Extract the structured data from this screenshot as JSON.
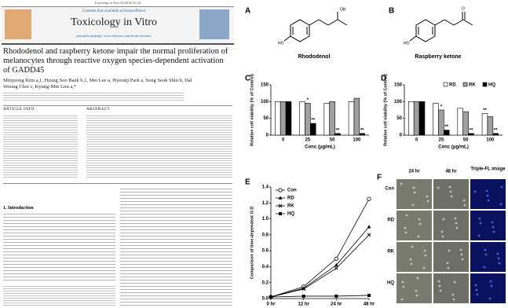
{
  "paper": {
    "citation": "Toxicology in Vitro 34 (2016) 35–44",
    "availability": "Contents lists available at ScienceDirect",
    "journal": "Toxicology in Vitro",
    "homepage": "journal homepage: www.elsevier.com/locate/toxinvit",
    "title": "Rhododenol and raspberry ketone impair the normal proliferation of melanocytes through reactive oxygen species-dependent activation of GADD45",
    "authors": "Minyeong Kim a,1, Heung Soo Baek b,1, Mei Lee a, Hyeonji Park a, Song Seok Shin b, Dal Woong Choi c, Kyung-Min Lim a,*",
    "article_info": "ARTICLE INFO",
    "abstract": "ABSTRACT",
    "introduction": "1. Introduction"
  },
  "figure": {
    "panels": [
      "A",
      "B",
      "C",
      "D",
      "E",
      "F"
    ],
    "compound_a": "Rhododenol",
    "compound_b": "Raspberry ketone",
    "panel_f": {
      "columns": [
        "24 hr",
        "48 hr",
        "Triple-FL image"
      ],
      "rows": [
        "Con",
        "RD",
        "RK",
        "HQ"
      ]
    }
  },
  "chart_data": [
    {
      "type": "bar",
      "x_label": "Conc (μg/mL)",
      "y_label": "Relative cell viability (% of Control)",
      "categories": [
        "0",
        "25",
        "50",
        "100"
      ],
      "series": [
        {
          "color": "#ffffff",
          "values": [
            100,
            100,
            95,
            100
          ]
        },
        {
          "color": "#a0a0a0",
          "values": [
            100,
            95,
            100,
            110
          ]
        },
        {
          "color": "#000000",
          "values": [
            100,
            35,
            5,
            5
          ]
        }
      ],
      "annotations": [
        {
          "text": "*",
          "category": 1,
          "series": 1
        },
        {
          "text": "**",
          "category": 1,
          "series": 2
        },
        {
          "text": "**",
          "category": 2,
          "series": 2
        },
        {
          "text": "**",
          "category": 3,
          "series": 2
        }
      ],
      "ylim": [
        0,
        150
      ],
      "yticks": [
        0,
        50,
        100,
        150
      ]
    },
    {
      "type": "bar",
      "x_label": "Conc (μg/mL)",
      "y_label": "Relative cell viability (% of Control)",
      "categories": [
        "0",
        "25",
        "50",
        "100"
      ],
      "series": [
        {
          "name": "RD",
          "color": "#ffffff",
          "values": [
            100,
            95,
            80,
            65
          ]
        },
        {
          "name": "RK",
          "color": "#a0a0a0",
          "values": [
            100,
            75,
            70,
            55
          ]
        },
        {
          "name": "HQ",
          "color": "#000000",
          "values": [
            100,
            15,
            5,
            5
          ]
        }
      ],
      "annotations": [
        {
          "text": "*",
          "category": 1,
          "series": 1
        },
        {
          "text": "**",
          "category": 1,
          "series": 2
        },
        {
          "text": "**",
          "category": 2,
          "series": 2
        },
        {
          "text": "**",
          "category": 3,
          "series": 0
        },
        {
          "text": "**",
          "category": 3,
          "series": 2
        }
      ],
      "legend": "top-right",
      "ylim": [
        0,
        150
      ],
      "yticks": [
        0,
        50,
        100,
        150
      ]
    },
    {
      "type": "line",
      "y_label": "Comparison of time-dependent O.D",
      "categories": [
        "0 hr",
        "12 hr",
        "24 hr",
        "48 hr"
      ],
      "series": [
        {
          "name": "Con",
          "color": "#000000",
          "marker": "circle-open",
          "values": [
            0.02,
            0.15,
            0.5,
            1.25
          ]
        },
        {
          "name": "RD",
          "color": "#000000",
          "marker": "triangle",
          "values": [
            0.02,
            0.13,
            0.42,
            0.9
          ]
        },
        {
          "name": "RK",
          "color": "#000000",
          "marker": "x",
          "values": [
            0.02,
            0.12,
            0.38,
            0.8
          ]
        },
        {
          "name": "HQ",
          "color": "#000000",
          "marker": "square",
          "values": [
            0.02,
            0.03,
            0.03,
            0.04
          ]
        }
      ],
      "legend": "top-left",
      "ylim": [
        0,
        1.4
      ],
      "yticks": [
        {
          "value": 0,
          "label": "0.0"
        },
        {
          "value": 0.2,
          "label": "0.2"
        },
        {
          "value": 0.4,
          "label": "0.4"
        },
        {
          "value": 0.6,
          "label": "0.6"
        },
        {
          "value": 0.8,
          "label": "0.8"
        },
        {
          "value": 1.0,
          "label": "1.0"
        },
        {
          "value": 1.2,
          "label": "1.2"
        },
        {
          "value": 1.4,
          "label": "1.4"
        }
      ]
    }
  ]
}
